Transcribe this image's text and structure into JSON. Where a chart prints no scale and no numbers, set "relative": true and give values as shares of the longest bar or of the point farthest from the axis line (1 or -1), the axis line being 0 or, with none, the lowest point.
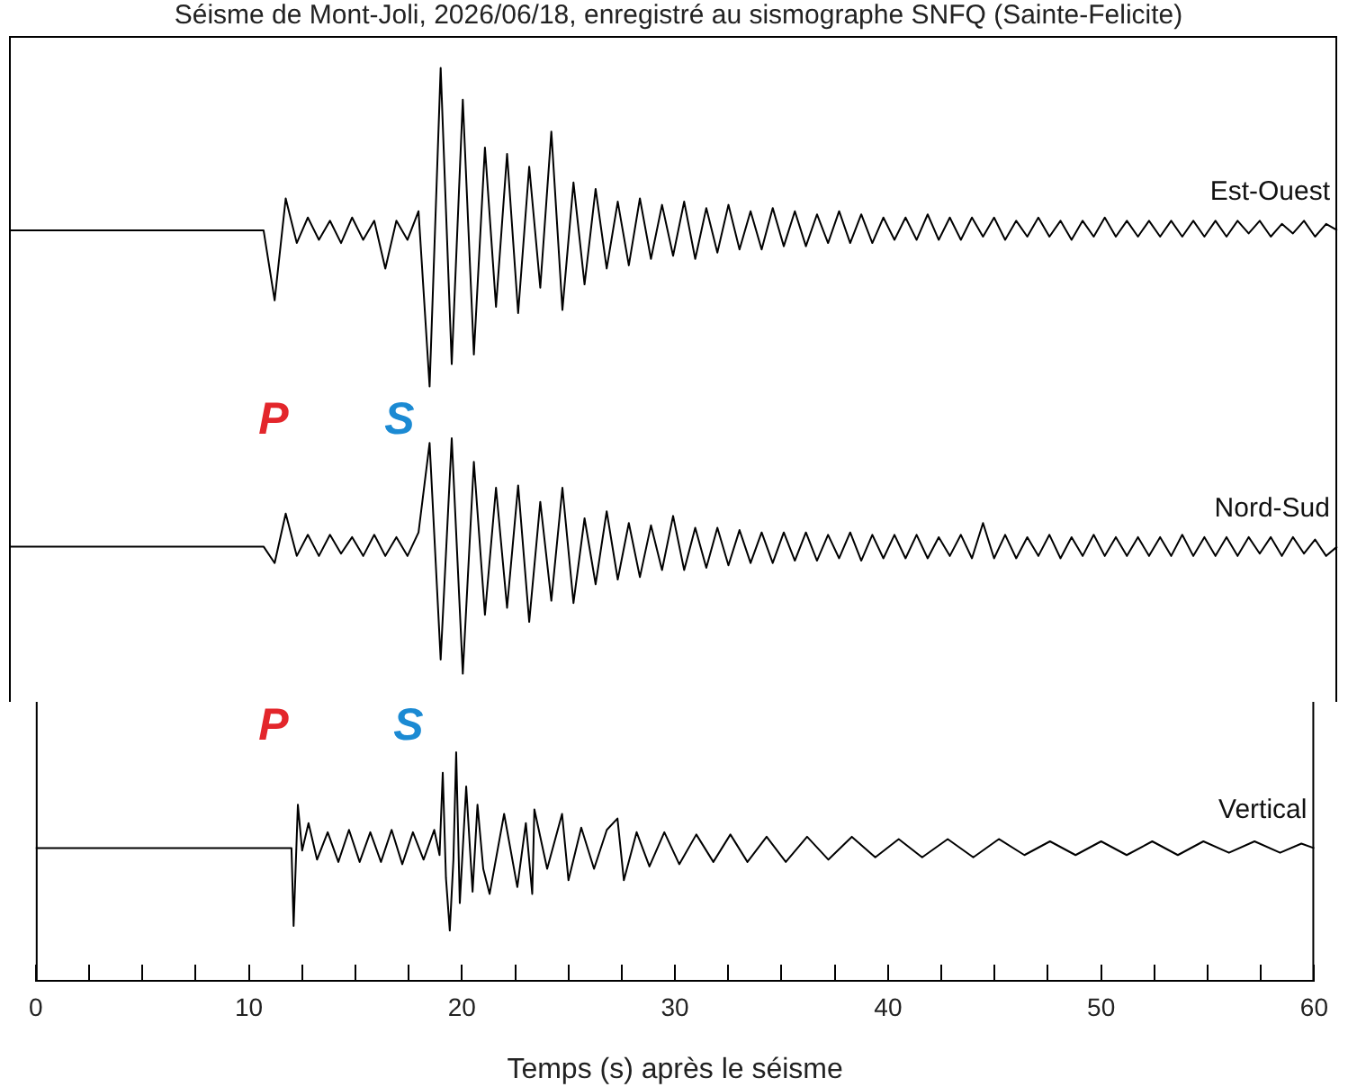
{
  "chart_data": [
    {
      "type": "line",
      "title": "Séisme de Mont-Joli, 2026/06/18, enregistré au sismographe SNFQ (Sainte-Felicite)",
      "relative": true,
      "tick_labels": false,
      "categories": [
        null,
        null,
        null,
        null,
        null,
        null,
        null,
        null,
        null,
        null,
        null,
        null,
        null,
        null,
        null,
        null,
        null,
        null,
        null,
        null,
        null,
        null,
        null,
        null,
        null,
        null,
        null,
        null,
        null,
        null,
        null,
        null,
        null,
        null,
        null,
        null,
        null,
        null,
        null,
        null,
        null,
        null,
        null,
        null,
        null,
        null,
        null,
        null,
        null,
        null,
        null,
        null,
        null,
        null,
        null,
        null,
        null,
        null,
        null,
        null,
        null,
        null,
        null,
        null,
        null,
        null,
        null,
        null,
        null,
        null,
        null,
        null,
        null,
        null,
        null,
        null,
        null,
        null,
        null,
        null,
        null,
        null,
        null,
        null,
        null,
        null,
        null,
        null,
        null,
        null,
        null,
        null,
        null,
        null,
        null,
        null,
        null,
        null,
        null,
        null,
        null,
        null,
        null,
        null,
        null,
        null,
        null,
        null,
        null,
        null,
        null,
        null,
        null,
        null,
        null,
        null,
        null,
        null,
        null,
        null,
        null
      ],
      "series": [
        {
          "name": "Est-Ouest",
          "color": "#000000",
          "values": [
            0.49,
            0.49,
            0.49,
            0.49,
            0.49,
            0.49,
            0.49,
            0.49,
            0.49,
            0.49,
            0.49,
            0.49,
            0.49,
            0.49,
            0.49,
            0.49,
            0.49,
            0.49,
            0.49,
            0.49,
            0.49,
            0.49,
            0.49,
            0.49,
            0.27,
            0.59,
            0.45,
            0.53,
            0.46,
            0.52,
            0.45,
            0.53,
            0.46,
            0.52,
            0.37,
            0.52,
            0.46,
            0.55,
            0.0,
            1.0,
            0.07,
            0.9,
            0.1,
            0.75,
            0.25,
            0.73,
            0.23,
            0.69,
            0.31,
            0.8,
            0.24,
            0.64,
            0.32,
            0.62,
            0.37,
            0.58,
            0.38,
            0.59,
            0.4,
            0.57,
            0.41,
            0.58,
            0.4,
            0.56,
            0.42,
            0.57,
            0.43,
            0.55,
            0.43,
            0.56,
            0.44,
            0.55,
            0.44,
            0.54,
            0.45,
            0.55,
            0.45,
            0.54,
            0.45,
            0.53,
            0.46,
            0.53,
            0.46,
            0.54,
            0.46,
            0.53,
            0.46,
            0.53,
            0.47,
            0.53,
            0.46,
            0.52,
            0.47,
            0.53,
            0.47,
            0.52,
            0.46,
            0.52,
            0.47,
            0.53,
            0.47,
            0.52,
            0.47,
            0.52,
            0.47,
            0.52,
            0.47,
            0.52,
            0.47,
            0.52,
            0.47,
            0.52,
            0.48,
            0.52,
            0.47,
            0.51,
            0.48,
            0.52,
            0.47,
            0.51,
            0.49
          ]
        }
      ]
    },
    {
      "type": "line",
      "relative": true,
      "tick_labels": false,
      "categories": [
        null,
        null,
        null,
        null,
        null,
        null,
        null,
        null,
        null,
        null,
        null,
        null,
        null,
        null,
        null,
        null,
        null,
        null,
        null,
        null,
        null,
        null,
        null,
        null,
        null,
        null,
        null,
        null,
        null,
        null,
        null,
        null,
        null,
        null,
        null,
        null,
        null,
        null,
        null,
        null,
        null,
        null,
        null,
        null,
        null,
        null,
        null,
        null,
        null,
        null,
        null,
        null,
        null,
        null,
        null,
        null,
        null,
        null,
        null,
        null,
        null,
        null,
        null,
        null,
        null,
        null,
        null,
        null,
        null,
        null,
        null,
        null,
        null,
        null,
        null,
        null,
        null,
        null,
        null,
        null,
        null,
        null,
        null,
        null,
        null,
        null,
        null,
        null,
        null,
        null,
        null,
        null,
        null,
        null,
        null,
        null,
        null,
        null,
        null,
        null,
        null,
        null,
        null,
        null,
        null,
        null,
        null,
        null,
        null,
        null,
        null,
        null,
        null,
        null,
        null,
        null,
        null,
        null,
        null,
        null,
        null
      ],
      "annotations": [
        "P",
        "S"
      ],
      "series": [
        {
          "name": "Nord-Sud",
          "color": "#000000",
          "values": [
            0.54,
            0.54,
            0.54,
            0.54,
            0.54,
            0.54,
            0.54,
            0.54,
            0.54,
            0.54,
            0.54,
            0.54,
            0.54,
            0.54,
            0.54,
            0.54,
            0.54,
            0.54,
            0.54,
            0.54,
            0.54,
            0.54,
            0.54,
            0.54,
            0.47,
            0.68,
            0.5,
            0.59,
            0.5,
            0.59,
            0.51,
            0.58,
            0.5,
            0.59,
            0.5,
            0.58,
            0.5,
            0.6,
            0.98,
            0.06,
            1.0,
            0.0,
            0.9,
            0.25,
            0.79,
            0.28,
            0.8,
            0.22,
            0.73,
            0.31,
            0.79,
            0.3,
            0.66,
            0.38,
            0.69,
            0.4,
            0.64,
            0.41,
            0.63,
            0.44,
            0.67,
            0.44,
            0.62,
            0.45,
            0.62,
            0.46,
            0.61,
            0.47,
            0.6,
            0.47,
            0.6,
            0.48,
            0.6,
            0.48,
            0.59,
            0.49,
            0.6,
            0.48,
            0.59,
            0.49,
            0.59,
            0.49,
            0.59,
            0.49,
            0.58,
            0.5,
            0.59,
            0.49,
            0.64,
            0.49,
            0.59,
            0.49,
            0.58,
            0.5,
            0.59,
            0.49,
            0.58,
            0.5,
            0.59,
            0.5,
            0.58,
            0.5,
            0.58,
            0.5,
            0.58,
            0.5,
            0.59,
            0.5,
            0.58,
            0.5,
            0.58,
            0.5,
            0.58,
            0.51,
            0.58,
            0.5,
            0.58,
            0.51,
            0.57,
            0.5,
            0.54
          ]
        }
      ]
    },
    {
      "type": "line",
      "relative": true,
      "xlim": [
        0,
        60
      ],
      "tick_labels": "x",
      "xlabel": "Temps (s) après le séisme",
      "xticks": [
        0,
        {
          "value": 2.5,
          "label": null
        },
        {
          "value": 5,
          "label": null
        },
        {
          "value": 7.5,
          "label": null
        },
        10,
        {
          "value": 12.5,
          "label": null
        },
        {
          "value": 15,
          "label": null
        },
        {
          "value": 17.5,
          "label": null
        },
        20,
        {
          "value": 22.5,
          "label": null
        },
        {
          "value": 25,
          "label": null
        },
        {
          "value": 27.5,
          "label": null
        },
        30,
        {
          "value": 32.5,
          "label": null
        },
        {
          "value": 35,
          "label": null
        },
        {
          "value": 37.5,
          "label": null
        },
        40,
        {
          "value": 42.5,
          "label": null
        },
        {
          "value": 45,
          "label": null
        },
        {
          "value": 47.5,
          "label": null
        },
        50,
        {
          "value": 52.5,
          "label": null
        },
        {
          "value": 55,
          "label": null
        },
        {
          "value": 57.5,
          "label": null
        },
        60
      ],
      "annotations": [
        "P",
        "S"
      ],
      "series": [
        {
          "name": "Vertical",
          "color": "#000000",
          "x": [
            0,
            12.0,
            12.1,
            12.3,
            12.5,
            12.8,
            13.2,
            13.7,
            14.2,
            14.7,
            15.2,
            15.7,
            16.2,
            16.7,
            17.2,
            17.7,
            18.2,
            18.7,
            18.95,
            19.1,
            19.25,
            19.43,
            19.6,
            19.73,
            19.9,
            20.2,
            20.5,
            20.73,
            21.0,
            21.3,
            21.98,
            22.6,
            23.0,
            23.3,
            23.4,
            24.0,
            24.7,
            25.0,
            25.6,
            26.2,
            26.8,
            27.3,
            27.6,
            28.2,
            28.8,
            29.5,
            30.2,
            31,
            31.8,
            32.6,
            33.4,
            34.3,
            35.2,
            36.2,
            37.2,
            38.3,
            39.4,
            40.5,
            41.6,
            42.8,
            44,
            45.2,
            46.4,
            47.6,
            48.8,
            50,
            51.2,
            52.4,
            53.6,
            54.8,
            56,
            57.2,
            58.4,
            59.4,
            60
          ],
          "values": [
            0.58,
            0.58,
            0.24,
            0.77,
            0.57,
            0.69,
            0.53,
            0.65,
            0.52,
            0.66,
            0.52,
            0.65,
            0.52,
            0.66,
            0.51,
            0.65,
            0.53,
            0.66,
            0.55,
            0.91,
            0.45,
            0.22,
            0.53,
            1.0,
            0.34,
            0.85,
            0.39,
            0.77,
            0.49,
            0.38,
            0.73,
            0.41,
            0.69,
            0.38,
            0.75,
            0.49,
            0.73,
            0.44,
            0.67,
            0.49,
            0.66,
            0.71,
            0.44,
            0.65,
            0.5,
            0.65,
            0.51,
            0.64,
            0.52,
            0.64,
            0.52,
            0.63,
            0.52,
            0.63,
            0.53,
            0.63,
            0.54,
            0.62,
            0.54,
            0.62,
            0.54,
            0.62,
            0.55,
            0.61,
            0.55,
            0.61,
            0.55,
            0.61,
            0.55,
            0.61,
            0.56,
            0.61,
            0.56,
            0.6,
            0.58
          ]
        }
      ]
    }
  ]
}
